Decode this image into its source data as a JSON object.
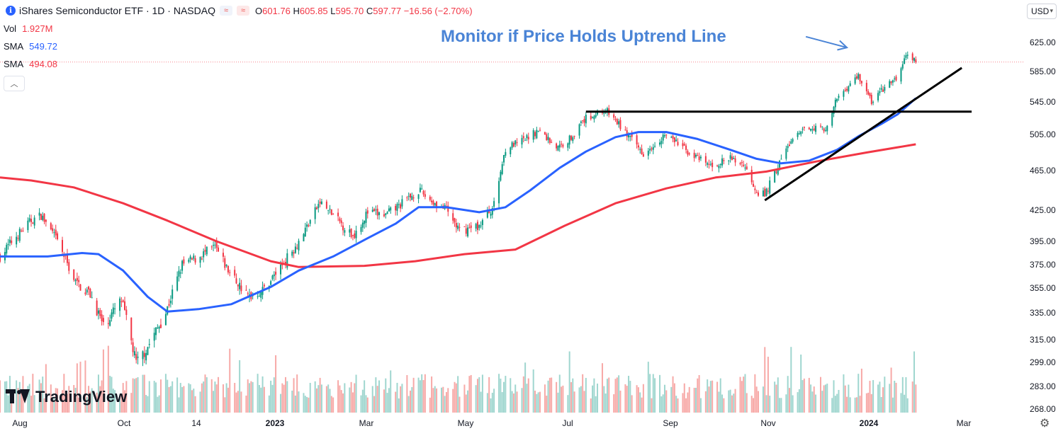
{
  "header": {
    "title": "iShares Semiconductor ETF · 1D · NASDAQ",
    "info_icon": "info-icon",
    "chip1": "≈",
    "chip2": "≈",
    "ohlc": {
      "o_label": "O",
      "o": "601.76",
      "h_label": "H",
      "h": "605.85",
      "l_label": "L",
      "l": "595.70",
      "c_label": "C",
      "c": "597.77",
      "chg": "−16.56 (−2.70%)"
    }
  },
  "legend": [
    {
      "name": "Vol",
      "value": "1.927M",
      "color": "#f23645"
    },
    {
      "name": "SMA",
      "value": "549.72",
      "color": "#2962ff"
    },
    {
      "name": "SMA",
      "value": "494.08",
      "color": "#f23645"
    }
  ],
  "collapse_icon": "chevron-up-icon",
  "currency": "USD",
  "annotation": "Monitor if Price Holds Uptrend Line",
  "logo_text": "TradingView",
  "settings_icon": "gear-icon",
  "colors": {
    "up": "#089981",
    "down": "#f23645",
    "sma_fast": "#2962ff",
    "sma_slow": "#f23645",
    "annotation": "#4a84d6",
    "vol_up": "#9fd6cf",
    "vol_down": "#f7a9a7"
  },
  "chart_data": {
    "type": "candlestick",
    "price_axis_labels": [
      "625.00",
      "585.00",
      "545.00",
      "505.00",
      "465.00",
      "425.00",
      "395.00",
      "375.00",
      "355.00",
      "335.00",
      "315.00",
      "299.00",
      "283.00",
      "268.00"
    ],
    "price_axis_values": [
      625,
      585,
      545,
      505,
      465,
      425,
      395,
      375,
      355,
      335,
      315,
      299,
      283,
      268
    ],
    "time_labels": [
      {
        "label": "Aug",
        "bold": false
      },
      {
        "label": "Oct",
        "bold": false
      },
      {
        "label": "14",
        "bold": false
      },
      {
        "label": "2023",
        "bold": true
      },
      {
        "label": "Mar",
        "bold": false
      },
      {
        "label": "May",
        "bold": false
      },
      {
        "label": "Jul",
        "bold": false
      },
      {
        "label": "Sep",
        "bold": false
      },
      {
        "label": "Nov",
        "bold": false
      },
      {
        "label": "2024",
        "bold": true
      },
      {
        "label": "Mar",
        "bold": false
      }
    ],
    "price_path": [
      [
        "2022-07-22",
        382
      ],
      [
        "2022-08-01",
        400
      ],
      [
        "2022-08-10",
        415
      ],
      [
        "2022-08-16",
        420
      ],
      [
        "2022-08-26",
        395
      ],
      [
        "2022-09-06",
        360
      ],
      [
        "2022-09-15",
        350
      ],
      [
        "2022-09-23",
        325
      ],
      [
        "2022-10-04",
        345
      ],
      [
        "2022-10-13",
        298
      ],
      [
        "2022-10-20",
        310
      ],
      [
        "2022-10-31",
        335
      ],
      [
        "2022-11-10",
        375
      ],
      [
        "2022-11-18",
        380
      ],
      [
        "2022-11-30",
        390
      ],
      [
        "2022-12-08",
        370
      ],
      [
        "2022-12-20",
        348
      ],
      [
        "2022-12-29",
        353
      ],
      [
        "2023-01-10",
        375
      ],
      [
        "2023-01-20",
        395
      ],
      [
        "2023-02-02",
        433
      ],
      [
        "2023-02-10",
        420
      ],
      [
        "2023-02-22",
        400
      ],
      [
        "2023-03-03",
        423
      ],
      [
        "2023-03-14",
        420
      ],
      [
        "2023-03-24",
        432
      ],
      [
        "2023-04-03",
        445
      ],
      [
        "2023-04-12",
        433
      ],
      [
        "2023-04-20",
        425
      ],
      [
        "2023-04-28",
        405
      ],
      [
        "2023-05-10",
        410
      ],
      [
        "2023-05-19",
        430
      ],
      [
        "2023-05-26",
        490
      ],
      [
        "2023-06-05",
        497
      ],
      [
        "2023-06-15",
        510
      ],
      [
        "2023-06-27",
        490
      ],
      [
        "2023-07-05",
        502
      ],
      [
        "2023-07-14",
        525
      ],
      [
        "2023-07-26",
        535
      ],
      [
        "2023-08-02",
        520
      ],
      [
        "2023-08-10",
        500
      ],
      [
        "2023-08-18",
        485
      ],
      [
        "2023-08-31",
        505
      ],
      [
        "2023-09-08",
        495
      ],
      [
        "2023-09-20",
        478
      ],
      [
        "2023-09-28",
        470
      ],
      [
        "2023-10-10",
        478
      ],
      [
        "2023-10-18",
        472
      ],
      [
        "2023-10-26",
        445
      ],
      [
        "2023-10-31",
        440
      ],
      [
        "2023-11-08",
        470
      ],
      [
        "2023-11-15",
        495
      ],
      [
        "2023-11-27",
        515
      ],
      [
        "2023-12-08",
        512
      ],
      [
        "2023-12-14",
        550
      ],
      [
        "2023-12-27",
        580
      ],
      [
        "2024-01-04",
        545
      ],
      [
        "2024-01-10",
        560
      ],
      [
        "2024-01-19",
        575
      ],
      [
        "2024-01-26",
        610
      ],
      [
        "2024-01-31",
        598
      ]
    ],
    "sma_fast_path": [
      [
        "2022-07-22",
        382
      ],
      [
        "2022-08-20",
        382
      ],
      [
        "2022-09-10",
        385
      ],
      [
        "2022-09-20",
        384
      ],
      [
        "2022-10-05",
        370
      ],
      [
        "2022-10-20",
        348
      ],
      [
        "2022-11-01",
        336
      ],
      [
        "2022-11-20",
        338
      ],
      [
        "2022-12-10",
        342
      ],
      [
        "2023-01-03",
        356
      ],
      [
        "2023-01-20",
        370
      ],
      [
        "2023-02-10",
        382
      ],
      [
        "2023-03-03",
        398
      ],
      [
        "2023-03-20",
        412
      ],
      [
        "2023-04-03",
        428
      ],
      [
        "2023-04-20",
        428
      ],
      [
        "2023-05-10",
        423
      ],
      [
        "2023-05-26",
        428
      ],
      [
        "2023-06-10",
        445
      ],
      [
        "2023-06-28",
        468
      ],
      [
        "2023-07-14",
        486
      ],
      [
        "2023-08-01",
        502
      ],
      [
        "2023-08-15",
        508
      ],
      [
        "2023-09-01",
        508
      ],
      [
        "2023-09-20",
        500
      ],
      [
        "2023-10-10",
        488
      ],
      [
        "2023-10-26",
        478
      ],
      [
        "2023-11-10",
        473
      ],
      [
        "2023-11-27",
        476
      ],
      [
        "2023-12-14",
        488
      ],
      [
        "2023-12-27",
        503
      ],
      [
        "2024-01-10",
        518
      ],
      [
        "2024-01-20",
        530
      ],
      [
        "2024-01-31",
        549.72
      ]
    ],
    "sma_slow_path": [
      [
        "2022-07-22",
        458
      ],
      [
        "2022-08-10",
        455
      ],
      [
        "2022-09-05",
        448
      ],
      [
        "2022-10-05",
        432
      ],
      [
        "2022-11-01",
        415
      ],
      [
        "2022-12-01",
        395
      ],
      [
        "2023-01-03",
        378
      ],
      [
        "2023-01-20",
        373
      ],
      [
        "2023-03-01",
        374
      ],
      [
        "2023-04-01",
        378
      ],
      [
        "2023-05-01",
        384
      ],
      [
        "2023-06-01",
        388
      ],
      [
        "2023-07-01",
        410
      ],
      [
        "2023-08-01",
        432
      ],
      [
        "2023-09-01",
        447
      ],
      [
        "2023-10-01",
        458
      ],
      [
        "2023-11-01",
        464
      ],
      [
        "2023-12-01",
        475
      ],
      [
        "2024-01-01",
        485
      ],
      [
        "2024-01-31",
        494.08
      ]
    ],
    "trendlines": [
      {
        "name": "horizontal-resistance",
        "from": [
          "2023-07-14",
          533
        ],
        "to": [
          "2024-03-05",
          533
        ]
      },
      {
        "name": "uptrend-line",
        "from": [
          "2023-10-31",
          435
        ],
        "to": [
          "2024-02-28",
          590
        ]
      }
    ],
    "annotation_arrow": {
      "from": [
        "2023-11-25",
        633
      ],
      "to": [
        "2023-12-20",
        618
      ]
    },
    "x_range": [
      "2022-07-22",
      "2024-03-20"
    ]
  }
}
